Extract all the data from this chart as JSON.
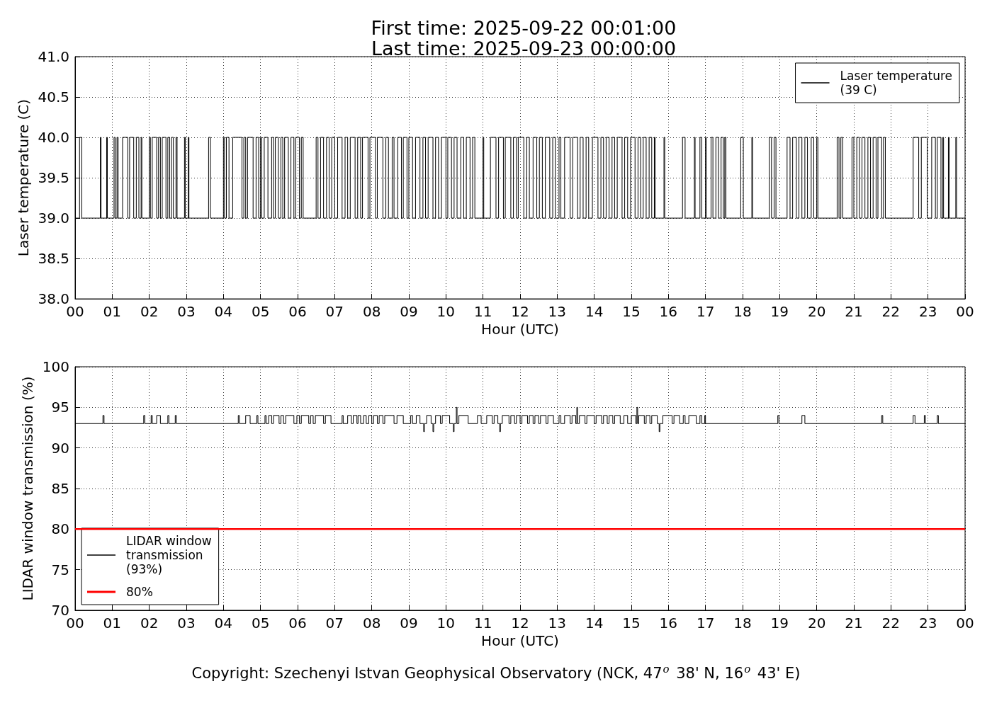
{
  "chart_data": [
    {
      "type": "step",
      "title": "First time: 2025-09-22 00:01:00\nLast time: 2025-09-23 00:00:00",
      "xlabel": "Hour (UTC)",
      "ylabel": "Laser temperature (C)",
      "series": [
        {
          "name": "Laser temperature\n(39 C)",
          "color": "#000000",
          "x": [
            0.02,
            0.12,
            0.18,
            0.68,
            0.7,
            0.85,
            0.87,
            1.05,
            1.08,
            1.13,
            1.16,
            1.28,
            1.42,
            1.47,
            1.58,
            1.65,
            1.72,
            1.78,
            1.8,
            2,
            2.03,
            2.08,
            2.2,
            2.25,
            2.3,
            2.35,
            2.45,
            2.5,
            2.55,
            2.6,
            2.65,
            2.72,
            2.75,
            2.95,
            2.97,
            3.05,
            3.07,
            3.6,
            3.65,
            4,
            4.03,
            4.08,
            4.15,
            4.25,
            4.5,
            4.55,
            4.6,
            4.65,
            4.8,
            4.88,
            4.95,
            5,
            5.03,
            5.1,
            5.2,
            5.3,
            5.35,
            5.4,
            5.48,
            5.55,
            5.6,
            5.65,
            5.75,
            5.82,
            5.9,
            5.95,
            6.05,
            6.1,
            6.15,
            6.5,
            6.55,
            6.62,
            6.7,
            6.78,
            6.85,
            6.92,
            7,
            7.08,
            7.2,
            7.28,
            7.35,
            7.42,
            7.55,
            7.62,
            7.7,
            7.75,
            7.9,
            7.95,
            8.1,
            8.15,
            8.3,
            8.38,
            8.45,
            8.55,
            8.6,
            8.7,
            8.8,
            8.85,
            8.95,
            9,
            9.1,
            9.18,
            9.3,
            9.38,
            9.45,
            9.52,
            9.65,
            9.72,
            9.8,
            9.88,
            10,
            10.05,
            10.15,
            10.22,
            10.3,
            10.4,
            10.48,
            10.55,
            10.65,
            10.72,
            10.78,
            11,
            11.02,
            11.2,
            11.35,
            11.42,
            11.55,
            11.6,
            11.75,
            11.82,
            11.9,
            11.95,
            12.1,
            12.18,
            12.25,
            12.35,
            12.45,
            12.52,
            12.6,
            12.68,
            12.8,
            12.88,
            12.95,
            13.05,
            13.1,
            13.2,
            13.35,
            13.42,
            13.55,
            13.62,
            13.7,
            13.78,
            13.85,
            13.95,
            14.1,
            14.18,
            14.25,
            14.32,
            14.4,
            14.48,
            14.55,
            14.62,
            14.75,
            14.82,
            14.9,
            14.98,
            15.1,
            15.18,
            15.25,
            15.32,
            15.4,
            15.48,
            15.55,
            15.62,
            15.64,
            15.88,
            15.9,
            16.38,
            16.45,
            16.7,
            16.72,
            16.85,
            16.9,
            17,
            17.02,
            17.15,
            17.2,
            17.28,
            17.35,
            17.42,
            17.48,
            17.52,
            17.55,
            17.95,
            18.02,
            18.25,
            18.27,
            18.72,
            18.78,
            18.85,
            18.9,
            19.2,
            19.28,
            19.35,
            19.45,
            19.52,
            19.6,
            19.68,
            19.75,
            19.85,
            19.92,
            20,
            20.03,
            20.55,
            20.6,
            20.65,
            20.7,
            20.95,
            21,
            21.08,
            21.15,
            21.22,
            21.3,
            21.38,
            21.45,
            21.52,
            21.6,
            21.65,
            21.75,
            21.8,
            21.85,
            22.6,
            22.75,
            22.82,
            22.98,
            23.1,
            23.2,
            23.25,
            23.35,
            23.4,
            23.42,
            23.55,
            23.57,
            23.75,
            23.77,
            24
          ],
          "values": [
            39,
            40,
            39,
            40,
            39,
            40,
            39,
            40,
            39,
            40,
            39,
            40,
            39,
            40,
            39,
            40,
            39,
            40,
            39,
            40,
            39,
            40,
            39,
            40,
            39,
            40,
            39,
            40,
            39,
            40,
            39,
            40,
            39,
            40,
            39,
            40,
            39,
            40,
            39,
            40,
            39,
            40,
            39,
            40,
            39,
            40,
            39,
            40,
            39,
            40,
            39,
            40,
            39,
            40,
            39,
            40,
            39,
            40,
            39,
            40,
            39,
            40,
            39,
            40,
            39,
            40,
            39,
            40,
            39,
            40,
            39,
            40,
            39,
            40,
            39,
            40,
            39,
            40,
            39,
            40,
            39,
            40,
            39,
            40,
            39,
            40,
            39,
            40,
            39,
            40,
            39,
            40,
            39,
            40,
            39,
            40,
            39,
            40,
            39,
            40,
            39,
            40,
            39,
            40,
            39,
            40,
            39,
            40,
            39,
            40,
            39,
            40,
            39,
            40,
            39,
            40,
            39,
            40,
            39,
            40,
            39,
            40,
            39,
            40,
            39,
            40,
            39,
            40,
            39,
            40,
            39,
            40,
            39,
            40,
            39,
            40,
            39,
            40,
            39,
            40,
            39,
            40,
            39,
            40,
            39,
            40,
            39,
            40,
            39,
            40,
            39,
            40,
            39,
            40,
            39,
            40,
            39,
            40,
            39,
            40,
            39,
            40,
            39,
            40,
            39,
            40,
            39,
            40,
            39,
            40,
            39,
            40,
            39,
            40,
            39,
            40,
            39,
            40,
            39,
            40,
            39,
            40,
            39,
            40,
            39,
            40,
            39,
            40,
            39,
            40,
            39,
            40,
            39,
            40,
            39,
            40,
            39,
            40,
            39,
            40,
            39,
            40,
            39,
            40,
            39,
            40,
            39,
            40,
            39,
            40,
            39,
            40,
            39,
            40,
            39,
            40,
            39,
            40,
            39,
            40,
            39,
            40,
            39,
            40,
            39,
            40,
            39,
            40,
            39,
            40,
            39,
            40,
            39,
            40,
            39,
            40,
            39,
            40,
            39,
            40,
            39,
            40,
            39,
            40,
            39,
            39
          ]
        }
      ],
      "xlim": [
        0,
        24
      ],
      "xticks": [
        {
          "value": 0,
          "label": "00"
        },
        {
          "value": 1,
          "label": "01"
        },
        {
          "value": 2,
          "label": "02"
        },
        {
          "value": 3,
          "label": "03"
        },
        {
          "value": 4,
          "label": "04"
        },
        {
          "value": 5,
          "label": "05"
        },
        {
          "value": 6,
          "label": "06"
        },
        {
          "value": 7,
          "label": "07"
        },
        {
          "value": 8,
          "label": "08"
        },
        {
          "value": 9,
          "label": "09"
        },
        10,
        11,
        12,
        13,
        14,
        15,
        16,
        17,
        18,
        19,
        20,
        21,
        22,
        23,
        {
          "value": 24,
          "label": "00"
        }
      ],
      "ylim": [
        38,
        41
      ],
      "yticks": [
        {
          "value": 38,
          "label": "38.0"
        },
        38.5,
        {
          "value": 39,
          "label": "39.0"
        },
        39.5,
        {
          "value": 40,
          "label": "40.0"
        },
        40.5,
        {
          "value": 41,
          "label": "41.0"
        }
      ],
      "grid": true,
      "legend": "top right",
      "line_style": "solid"
    },
    {
      "type": "step",
      "xlabel": "Hour (UTC)",
      "ylabel": "LIDAR window transmission (%)",
      "series": [
        {
          "name": "LIDAR window\ntransmission\n(93%)",
          "color": "#000000",
          "x": [
            0.02,
            0.75,
            0.78,
            1.85,
            1.88,
            2.05,
            2.08,
            2.2,
            2.3,
            2.5,
            2.53,
            2.7,
            2.73,
            4.4,
            4.43,
            4.6,
            4.72,
            4.9,
            4.93,
            5.12,
            5.15,
            5.22,
            5.3,
            5.35,
            5.5,
            5.55,
            5.62,
            5.68,
            5.9,
            5.98,
            6.05,
            6.1,
            6.3,
            6.35,
            6.42,
            6.48,
            6.7,
            6.75,
            6.9,
            7.2,
            7.23,
            7.35,
            7.45,
            7.5,
            7.6,
            7.63,
            7.7,
            7.78,
            7.85,
            7.92,
            8,
            8.05,
            8.15,
            8.2,
            8.3,
            8.35,
            8.6,
            8.68,
            8.85,
            9.05,
            9.1,
            9.2,
            9.3,
            9.4,
            9.42,
            9.48,
            9.6,
            9.65,
            9.67,
            9.72,
            9.85,
            9.9,
            10.1,
            10.2,
            10.22,
            10.28,
            10.3,
            10.35,
            10.6,
            10.85,
            10.95,
            11.1,
            11.25,
            11.3,
            11.4,
            11.45,
            11.47,
            11.52,
            11.7,
            11.75,
            11.85,
            11.9,
            12,
            12.05,
            12.2,
            12.25,
            12.35,
            12.4,
            12.5,
            12.55,
            12.7,
            12.75,
            12.9,
            13.05,
            13.1,
            13.2,
            13.35,
            13.4,
            13.5,
            13.53,
            13.55,
            13.6,
            13.75,
            13.8,
            14,
            14.05,
            14.2,
            14.25,
            14.35,
            14.4,
            14.5,
            14.55,
            14.7,
            14.8,
            14.9,
            15,
            15.12,
            15.15,
            15.17,
            15.2,
            15.35,
            15.4,
            15.5,
            15.55,
            15.7,
            15.75,
            15.77,
            15.85,
            16.1,
            16.15,
            16.3,
            16.4,
            16.45,
            16.55,
            16.75,
            16.85,
            16.9,
            16.98,
            17,
            18.95,
            18.98,
            19.6,
            19.68,
            21.75,
            21.78,
            22.6,
            22.65,
            22.9,
            22.93,
            23.25,
            23.28,
            24
          ],
          "values": [
            93,
            94,
            93,
            94,
            93,
            94,
            93,
            94,
            93,
            94,
            93,
            94,
            93,
            94,
            93,
            94,
            93,
            94,
            93,
            94,
            93,
            94,
            93,
            94,
            93,
            94,
            93,
            94,
            93,
            94,
            93,
            94,
            93,
            94,
            93,
            94,
            93,
            94,
            93,
            94,
            93,
            94,
            93,
            94,
            93,
            94,
            93,
            94,
            93,
            94,
            93,
            94,
            93,
            94,
            93,
            94,
            93,
            94,
            93,
            94,
            93,
            94,
            93,
            92,
            93,
            94,
            93,
            92,
            93,
            94,
            93,
            94,
            93,
            92,
            93,
            95,
            93,
            94,
            93,
            94,
            93,
            94,
            93,
            94,
            93,
            92,
            93,
            94,
            93,
            94,
            93,
            94,
            93,
            94,
            93,
            94,
            93,
            94,
            93,
            94,
            93,
            94,
            93,
            94,
            93,
            94,
            93,
            94,
            93,
            95,
            93,
            94,
            93,
            94,
            93,
            94,
            93,
            94,
            93,
            94,
            93,
            94,
            93,
            94,
            93,
            94,
            93,
            95,
            93,
            94,
            93,
            94,
            93,
            94,
            93,
            92,
            93,
            94,
            93,
            94,
            93,
            94,
            93,
            94,
            93,
            94,
            93,
            94,
            93,
            94,
            93,
            94,
            93,
            94,
            93,
            94,
            93,
            94,
            93,
            94,
            93,
            93
          ]
        }
      ],
      "ref_lines": [
        {
          "axis": "y",
          "value": 80,
          "label": "80%",
          "color": "#ff0000"
        }
      ],
      "xlim": [
        0,
        24
      ],
      "xticks": [
        {
          "value": 0,
          "label": "00"
        },
        {
          "value": 1,
          "label": "01"
        },
        {
          "value": 2,
          "label": "02"
        },
        {
          "value": 3,
          "label": "03"
        },
        {
          "value": 4,
          "label": "04"
        },
        {
          "value": 5,
          "label": "05"
        },
        {
          "value": 6,
          "label": "06"
        },
        {
          "value": 7,
          "label": "07"
        },
        {
          "value": 8,
          "label": "08"
        },
        {
          "value": 9,
          "label": "09"
        },
        10,
        11,
        12,
        13,
        14,
        15,
        16,
        17,
        18,
        19,
        20,
        21,
        22,
        23,
        {
          "value": 24,
          "label": "00"
        }
      ],
      "ylim": [
        70,
        100
      ],
      "yticks": [
        70,
        75,
        80,
        85,
        90,
        95,
        100
      ],
      "grid": true,
      "legend": "bottom left",
      "line_style": "solid",
      "annotations": [
        "Copyright: Szechenyi Istvan Geophysical Observatory (NCK, 47$^{o}$ 38' N, 16$^{o}$ 43' E)"
      ]
    }
  ]
}
